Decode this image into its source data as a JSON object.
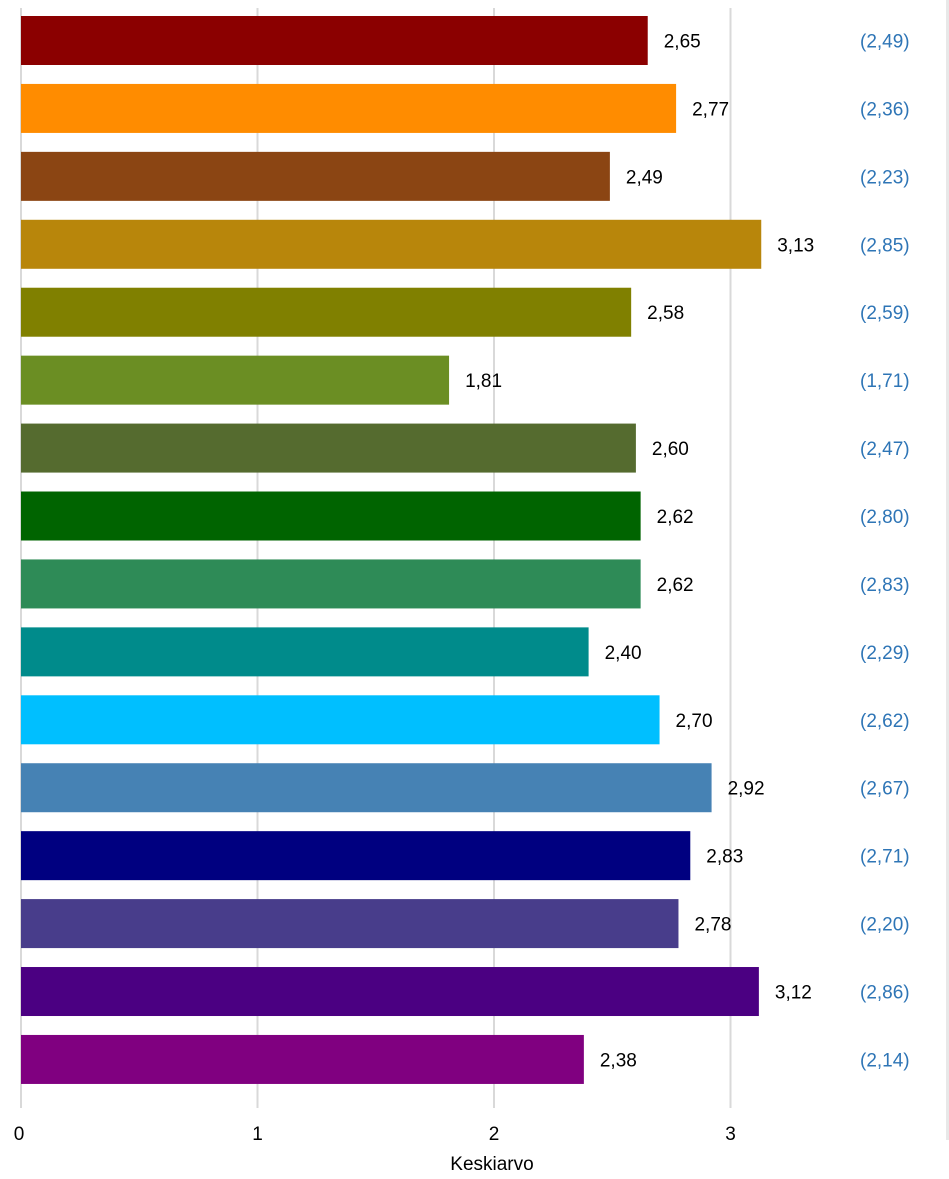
{
  "chart_data": {
    "type": "bar",
    "orientation": "horizontal",
    "xlabel": "Keskiarvo",
    "xlim": [
      0,
      3.5
    ],
    "xticks": [
      0,
      1,
      2,
      3
    ],
    "xtick_labels": [
      "0",
      "1",
      "2",
      "3"
    ],
    "grid": true,
    "legend": "none",
    "series": [
      {
        "values": [
          2.65,
          2.77,
          2.49,
          3.13,
          2.58,
          1.81,
          2.6,
          2.62,
          2.62,
          2.4,
          2.7,
          2.92,
          2.83,
          2.78,
          3.12,
          2.38
        ],
        "labels": [
          "2,65",
          "2,77",
          "2,49",
          "3,13",
          "2,58",
          "1,81",
          "2,60",
          "2,62",
          "2,62",
          "2,40",
          "2,70",
          "2,92",
          "2,83",
          "2,78",
          "3,12",
          "2,38"
        ],
        "colors": [
          "#8b0000",
          "#ff8c00",
          "#8b4513",
          "#b8860b",
          "#808000",
          "#6b8e23",
          "#556b2f",
          "#006400",
          "#2e8b57",
          "#008b8b",
          "#00bfff",
          "#4682b4",
          "#000080",
          "#483d8b",
          "#4b0082",
          "#800080"
        ]
      }
    ],
    "comparison_values": [
      2.49,
      2.36,
      2.23,
      2.85,
      2.59,
      1.71,
      2.47,
      2.8,
      2.83,
      2.29,
      2.62,
      2.67,
      2.71,
      2.2,
      2.86,
      2.14
    ],
    "comparison_labels": [
      "(2,49)",
      "(2,36)",
      "(2,23)",
      "(2,85)",
      "(2,59)",
      "(1,71)",
      "(2,47)",
      "(2,80)",
      "(2,83)",
      "(2,29)",
      "(2,62)",
      "(2,67)",
      "(2,71)",
      "(2,20)",
      "(2,86)",
      "(2,14)"
    ],
    "comparison_color": "#2e75b6",
    "gridline_color": "#d9d9d9"
  }
}
